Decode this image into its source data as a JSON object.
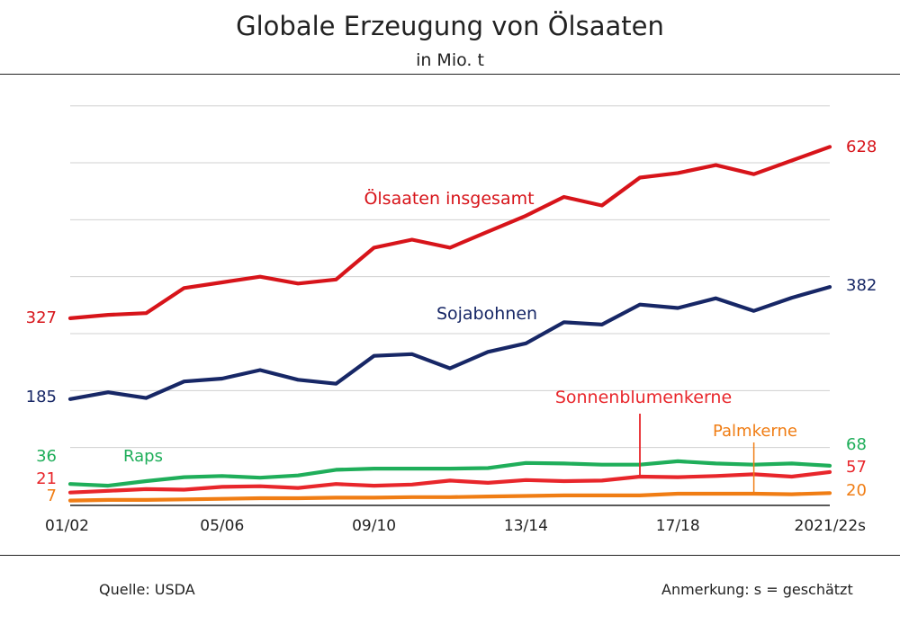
{
  "header": {
    "title": "Globale Erzeugung von Ölsaaten",
    "subtitle": "in Mio. t"
  },
  "footer": {
    "source": "Quelle: USDA",
    "note": "Anmerkung: s = geschätzt"
  },
  "colors": {
    "oelsaaten": "#d7141a",
    "sojabohnen": "#172766",
    "raps": "#1fae5a",
    "sonnenblumen": "#e8262b",
    "palmkerne": "#f07d14",
    "grid": "#d0d0d0",
    "axis": "#222222"
  },
  "chart_data": {
    "type": "line",
    "title": "Globale Erzeugung von Ölsaaten",
    "subtitle": "in Mio. t",
    "xlabel": "",
    "ylabel": "",
    "unit": "Mio. t",
    "ylim": [
      0,
      700
    ],
    "grid": true,
    "x": [
      "01/02",
      "02/03",
      "03/04",
      "04/05",
      "05/06",
      "06/07",
      "07/08",
      "08/09",
      "09/10",
      "10/11",
      "11/12",
      "12/13",
      "13/14",
      "14/15",
      "15/16",
      "16/17",
      "17/18",
      "18/19",
      "19/20",
      "20/21",
      "2021/22s"
    ],
    "tick_labels": [
      "01/02",
      "05/06",
      "09/10",
      "13/14",
      "17/18",
      "2021/22s"
    ],
    "series": [
      {
        "name": "Ölsaaten insgesamt",
        "color_key": "oelsaaten",
        "start_label": "327",
        "end_label": "628",
        "values": [
          327,
          333,
          336,
          380,
          390,
          400,
          388,
          395,
          451,
          465,
          451,
          479,
          507,
          540,
          525,
          574,
          582,
          596,
          580,
          604,
          628
        ]
      },
      {
        "name": "Sojabohnen",
        "color_key": "sojabohnen",
        "start_label": "185",
        "end_label": "382",
        "values": [
          185,
          197,
          187,
          216,
          221,
          236,
          219,
          212,
          261,
          264,
          239,
          268,
          283,
          320,
          316,
          351,
          345,
          362,
          340,
          363,
          382
        ]
      },
      {
        "name": "Raps",
        "color_key": "raps",
        "start_label": "36",
        "end_label": "68",
        "values": [
          36,
          33,
          41,
          48,
          50,
          47,
          51,
          61,
          63,
          63,
          63,
          64,
          73,
          72,
          70,
          70,
          76,
          72,
          70,
          72,
          68
        ]
      },
      {
        "name": "Sonnenblumenkerne",
        "color_key": "sonnenblumen",
        "start_label": "21",
        "end_label": "57",
        "values": [
          21,
          24,
          27,
          26,
          31,
          32,
          29,
          36,
          33,
          35,
          42,
          38,
          43,
          41,
          42,
          49,
          48,
          50,
          53,
          49,
          57
        ]
      },
      {
        "name": "Palmkerne",
        "color_key": "palmkerne",
        "start_label": "7",
        "end_label": "20",
        "values": [
          7,
          8,
          8,
          9,
          10,
          11,
          11,
          12,
          12,
          13,
          13,
          14,
          15,
          16,
          16,
          16,
          19,
          19,
          19,
          18,
          20
        ]
      }
    ]
  }
}
